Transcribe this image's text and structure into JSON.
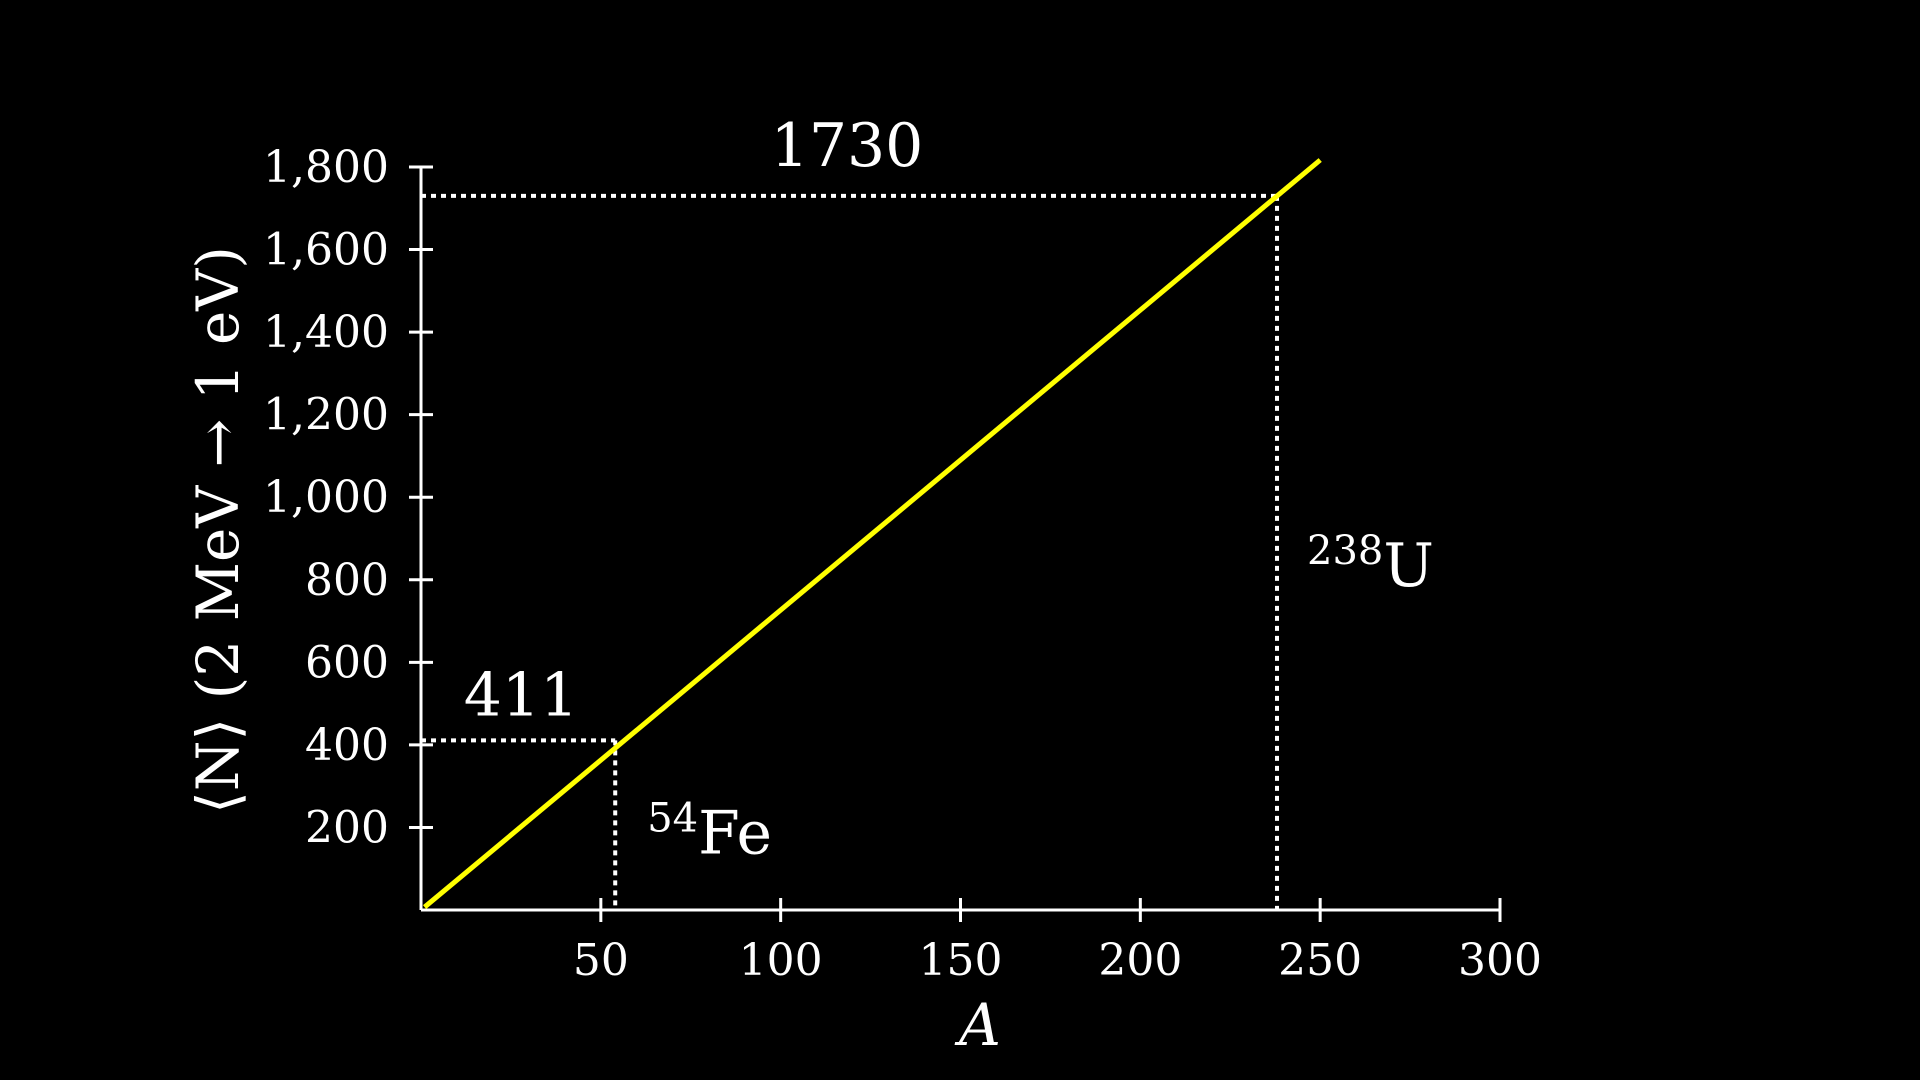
{
  "chart_data": {
    "type": "line",
    "title": "",
    "xlabel": "A",
    "ylabel": "⟨N⟩ (2 MeV → 1 eV)",
    "xlim": [
      0,
      300
    ],
    "ylim": [
      0,
      1800
    ],
    "x_ticks": [
      50,
      100,
      150,
      200,
      250,
      300
    ],
    "x_tick_labels": [
      "50",
      "100",
      "150",
      "200",
      "250",
      "300"
    ],
    "y_ticks": [
      200,
      400,
      600,
      800,
      1000,
      1200,
      1400,
      1600,
      1800
    ],
    "y_tick_labels": [
      "200",
      "400",
      "600",
      "800",
      "1,000",
      "1,200",
      "1,400",
      "1,600",
      "1,800"
    ],
    "grid": false,
    "series": [
      {
        "color": "#ffff00",
        "x": [
          1,
          250
        ],
        "y": [
          7,
          1817
        ]
      }
    ],
    "annotations": [
      {
        "id": "fe",
        "x": 54,
        "y": 411,
        "value_label": "411",
        "nuclide_mass": "54",
        "nuclide_symbol": "Fe"
      },
      {
        "id": "u",
        "x": 238,
        "y": 1730,
        "value_label": "1730",
        "nuclide_mass": "238",
        "nuclide_symbol": "U"
      }
    ],
    "colors": {
      "background": "#000000",
      "axes": "#ffffff",
      "line": "#ffff00",
      "guides": "#ffffff"
    }
  }
}
